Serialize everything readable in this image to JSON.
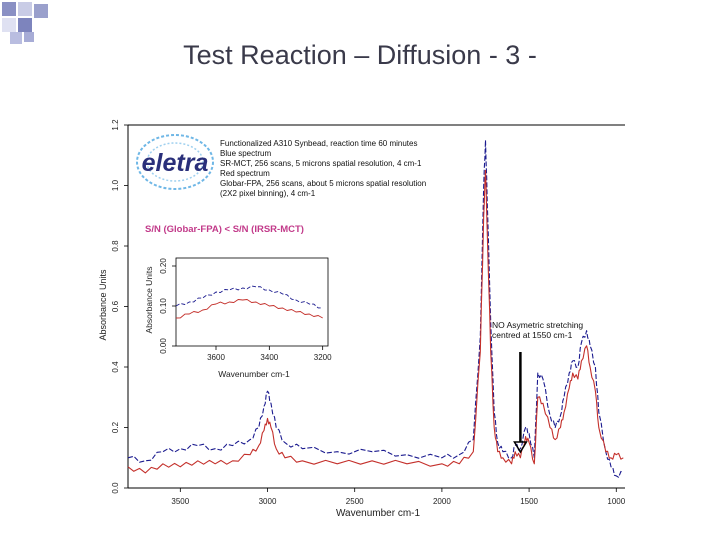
{
  "slide": {
    "title": "Test Reaction – Diffusion - 3 -",
    "accent_color": "#9aa0cc"
  },
  "logo": {
    "text": "eletra",
    "color": "#2a2f7a"
  },
  "chart_data": [
    {
      "type": "line",
      "xlabel": "Wavenumber cm-1",
      "ylabel": "Absorbance Units",
      "xlim": [
        3800,
        950
      ],
      "ylim": [
        0.0,
        1.2
      ],
      "x_ticks": [
        "3500",
        "3000",
        "2500",
        "2000",
        "1500",
        "1000"
      ],
      "y_ticks": [
        "0.0",
        "0.2",
        "0.4",
        "0.6",
        "0.8",
        "1.0",
        "1.2"
      ],
      "info_lines": [
        "Functionalized A310  Synbead, reaction time 60 minutes",
        "Blue spectrum",
        "SR-MCT, 256 scans, 5 microns spatial resolution, 4 cm-1",
        "Red spectrum",
        "Globar-FPA, 256 scans, about 5 microns spatial resolution",
        "(2X2 pixel binning), 4 cm-1"
      ],
      "snr_note": "S/N (Globar-FPA) < S/N (IRSR-MCT)",
      "annotation": {
        "text_line1": "NO Asymetric stretching",
        "text_line2": "centred at 1550 cm-1",
        "x": 1550
      },
      "series": [
        {
          "color": "#1b1b8f",
          "points": [
            [
              3800,
              0.1
            ],
            [
              3700,
              0.09
            ],
            [
              3600,
              0.12
            ],
            [
              3500,
              0.13
            ],
            [
              3400,
              0.14
            ],
            [
              3300,
              0.13
            ],
            [
              3200,
              0.14
            ],
            [
              3100,
              0.16
            ],
            [
              3050,
              0.2
            ],
            [
              3020,
              0.27
            ],
            [
              3000,
              0.32
            ],
            [
              2980,
              0.28
            ],
            [
              2950,
              0.2
            ],
            [
              2900,
              0.15
            ],
            [
              2800,
              0.13
            ],
            [
              2600,
              0.12
            ],
            [
              2400,
              0.12
            ],
            [
              2200,
              0.11
            ],
            [
              2000,
              0.1
            ],
            [
              1900,
              0.11
            ],
            [
              1820,
              0.16
            ],
            [
              1780,
              0.5
            ],
            [
              1760,
              1.0
            ],
            [
              1750,
              1.15
            ],
            [
              1740,
              0.95
            ],
            [
              1720,
              0.55
            ],
            [
              1700,
              0.25
            ],
            [
              1680,
              0.15
            ],
            [
              1650,
              0.12
            ],
            [
              1600,
              0.1
            ],
            [
              1580,
              0.14
            ],
            [
              1550,
              0.13
            ],
            [
              1520,
              0.2
            ],
            [
              1500,
              0.18
            ],
            [
              1470,
              0.1
            ],
            [
              1450,
              0.38
            ],
            [
              1420,
              0.36
            ],
            [
              1380,
              0.24
            ],
            [
              1350,
              0.2
            ],
            [
              1320,
              0.24
            ],
            [
              1300,
              0.3
            ],
            [
              1270,
              0.38
            ],
            [
              1250,
              0.42
            ],
            [
              1220,
              0.4
            ],
            [
              1200,
              0.48
            ],
            [
              1170,
              0.52
            ],
            [
              1150,
              0.47
            ],
            [
              1120,
              0.4
            ],
            [
              1100,
              0.25
            ],
            [
              1060,
              0.12
            ],
            [
              1030,
              0.07
            ],
            [
              1000,
              0.04
            ],
            [
              960,
              0.05
            ]
          ]
        },
        {
          "color": "#c4302b",
          "points": [
            [
              3800,
              0.07
            ],
            [
              3700,
              0.05
            ],
            [
              3600,
              0.08
            ],
            [
              3500,
              0.07
            ],
            [
              3400,
              0.09
            ],
            [
              3300,
              0.08
            ],
            [
              3200,
              0.09
            ],
            [
              3100,
              0.11
            ],
            [
              3050,
              0.14
            ],
            [
              3020,
              0.19
            ],
            [
              3000,
              0.23
            ],
            [
              2980,
              0.2
            ],
            [
              2950,
              0.13
            ],
            [
              2900,
              0.1
            ],
            [
              2800,
              0.09
            ],
            [
              2600,
              0.08
            ],
            [
              2400,
              0.09
            ],
            [
              2200,
              0.08
            ],
            [
              2000,
              0.08
            ],
            [
              1900,
              0.08
            ],
            [
              1820,
              0.12
            ],
            [
              1780,
              0.45
            ],
            [
              1760,
              0.9
            ],
            [
              1750,
              1.05
            ],
            [
              1740,
              0.85
            ],
            [
              1720,
              0.45
            ],
            [
              1700,
              0.2
            ],
            [
              1680,
              0.12
            ],
            [
              1650,
              0.1
            ],
            [
              1600,
              0.08
            ],
            [
              1580,
              0.12
            ],
            [
              1550,
              0.1
            ],
            [
              1520,
              0.17
            ],
            [
              1500,
              0.15
            ],
            [
              1470,
              0.08
            ],
            [
              1450,
              0.3
            ],
            [
              1420,
              0.28
            ],
            [
              1380,
              0.2
            ],
            [
              1350,
              0.16
            ],
            [
              1320,
              0.2
            ],
            [
              1300,
              0.25
            ],
            [
              1270,
              0.33
            ],
            [
              1250,
              0.38
            ],
            [
              1220,
              0.36
            ],
            [
              1200,
              0.42
            ],
            [
              1170,
              0.47
            ],
            [
              1150,
              0.4
            ],
            [
              1120,
              0.32
            ],
            [
              1100,
              0.2
            ],
            [
              1060,
              0.12
            ],
            [
              1030,
              0.1
            ],
            [
              1000,
              0.11
            ],
            [
              960,
              0.1
            ]
          ]
        }
      ]
    },
    {
      "type": "line",
      "xlabel": "Wavenumber cm-1",
      "ylabel": "Absorbance Units",
      "xlim": [
        3750,
        3180
      ],
      "ylim": [
        0.0,
        0.22
      ],
      "x_ticks": [
        "3600",
        "3400",
        "3200"
      ],
      "y_ticks": [
        "0.00",
        "0.10",
        "0.20"
      ],
      "series": [
        {
          "color": "#1b1b8f",
          "points": [
            [
              3750,
              0.1
            ],
            [
              3700,
              0.11
            ],
            [
              3650,
              0.12
            ],
            [
              3600,
              0.135
            ],
            [
              3550,
              0.14
            ],
            [
              3500,
              0.145
            ],
            [
              3450,
              0.148
            ],
            [
              3400,
              0.14
            ],
            [
              3350,
              0.13
            ],
            [
              3300,
              0.115
            ],
            [
              3250,
              0.105
            ],
            [
              3200,
              0.095
            ]
          ]
        },
        {
          "color": "#c4302b",
          "points": [
            [
              3750,
              0.07
            ],
            [
              3700,
              0.08
            ],
            [
              3650,
              0.09
            ],
            [
              3600,
              0.105
            ],
            [
              3550,
              0.11
            ],
            [
              3500,
              0.115
            ],
            [
              3450,
              0.11
            ],
            [
              3400,
              0.1
            ],
            [
              3350,
              0.095
            ],
            [
              3300,
              0.085
            ],
            [
              3250,
              0.08
            ],
            [
              3200,
              0.07
            ]
          ]
        }
      ]
    }
  ]
}
